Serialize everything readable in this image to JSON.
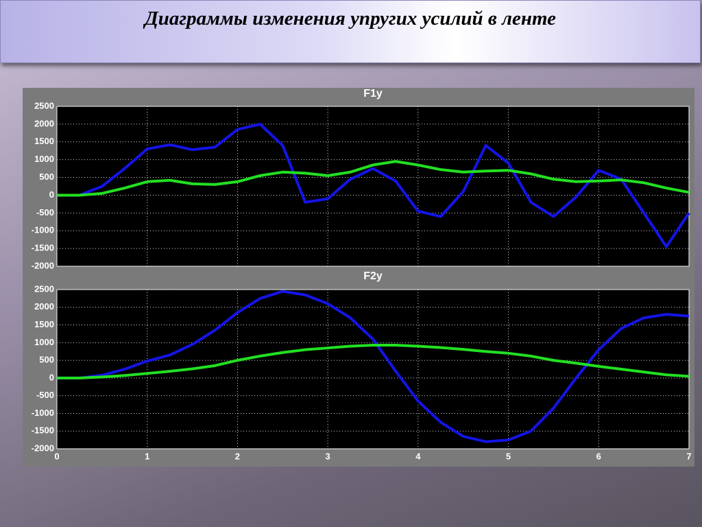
{
  "slide_title": "Диаграммы изменения упругих усилий в ленте",
  "chart_data": [
    {
      "type": "line",
      "title": "F1y",
      "x": [
        0,
        0.25,
        0.5,
        0.75,
        1,
        1.25,
        1.5,
        1.75,
        2,
        2.25,
        2.5,
        2.75,
        3,
        3.25,
        3.5,
        3.75,
        4,
        4.25,
        4.5,
        4.75,
        5,
        5.25,
        5.5,
        5.75,
        6,
        6.25,
        6.5,
        6.75,
        7
      ],
      "series": [
        {
          "color": "#1414e6",
          "values": [
            0,
            0,
            250,
            750,
            1300,
            1420,
            1280,
            1350,
            1850,
            2000,
            1400,
            -200,
            -100,
            450,
            750,
            400,
            -450,
            -600,
            100,
            1400,
            900,
            -200,
            -600,
            -50,
            700,
            450,
            -500,
            -1450,
            -500
          ]
        },
        {
          "color": "#22e022",
          "values": [
            0,
            0,
            50,
            200,
            380,
            420,
            320,
            300,
            380,
            550,
            650,
            620,
            550,
            650,
            850,
            950,
            850,
            720,
            650,
            680,
            700,
            600,
            450,
            380,
            400,
            430,
            350,
            200,
            80
          ]
        }
      ],
      "xlim": [
        0,
        7
      ],
      "xticks": [
        0,
        1,
        2,
        3,
        4,
        5,
        6,
        7
      ],
      "ylim": [
        -2000,
        2500
      ],
      "yticks": [
        -2000,
        -1500,
        -1000,
        -500,
        0,
        500,
        1000,
        1500,
        2000,
        2500
      ],
      "grid": true
    },
    {
      "type": "line",
      "title": "F2y",
      "x": [
        0,
        0.25,
        0.5,
        0.75,
        1,
        1.25,
        1.5,
        1.75,
        2,
        2.25,
        2.5,
        2.75,
        3,
        3.25,
        3.5,
        3.75,
        4,
        4.25,
        4.5,
        4.75,
        5,
        5.25,
        5.5,
        5.75,
        6,
        6.25,
        6.5,
        6.75,
        7
      ],
      "series": [
        {
          "color": "#1414e6",
          "values": [
            0,
            0,
            80,
            250,
            480,
            650,
            950,
            1350,
            1850,
            2250,
            2450,
            2350,
            2100,
            1700,
            1100,
            200,
            -650,
            -1250,
            -1650,
            -1800,
            -1750,
            -1500,
            -850,
            0,
            800,
            1400,
            1700,
            1800,
            1750
          ]
        },
        {
          "color": "#22e022",
          "values": [
            0,
            0,
            30,
            70,
            130,
            190,
            260,
            350,
            500,
            620,
            720,
            800,
            850,
            900,
            930,
            930,
            900,
            860,
            810,
            750,
            700,
            620,
            500,
            420,
            330,
            250,
            170,
            90,
            50
          ]
        }
      ],
      "xlim": [
        0,
        7
      ],
      "xticks": [
        0,
        1,
        2,
        3,
        4,
        5,
        6,
        7
      ],
      "ylim": [
        -2000,
        2500
      ],
      "yticks": [
        -2000,
        -1500,
        -1000,
        -500,
        0,
        500,
        1000,
        1500,
        2000,
        2500
      ],
      "grid": true
    }
  ]
}
